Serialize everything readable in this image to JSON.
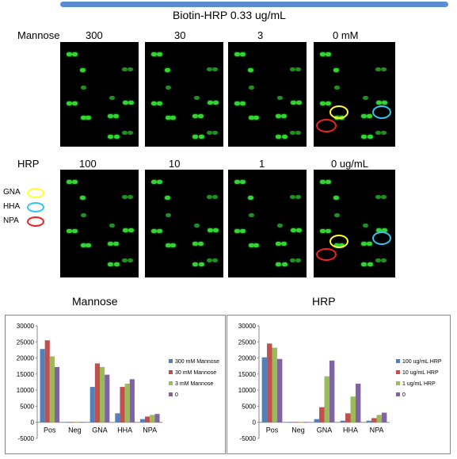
{
  "banner_title": "Biotin-HRP  0.33 ug/mL",
  "top_row": {
    "label": "Mannose",
    "concentrations": [
      "300",
      "30",
      "3",
      "0  mM"
    ]
  },
  "bottom_row": {
    "label": "HRP",
    "concentrations": [
      "100",
      "10",
      "1",
      "0  ug/mL"
    ]
  },
  "legend_rings": [
    {
      "label": "GNA",
      "color": "#ffff33"
    },
    {
      "label": "HHA",
      "color": "#33c4ee"
    },
    {
      "label": "NPA",
      "color": "#ee2222"
    }
  ],
  "chart_data": [
    {
      "type": "bar",
      "title": "Mannose",
      "categories": [
        "Pos",
        "Neg",
        "GNA",
        "HHA",
        "NPA"
      ],
      "ylim": [
        -5000,
        30000
      ],
      "yticks": [
        "30000",
        "25000",
        "20000",
        "15000",
        "10000",
        "5000",
        "0",
        "-5000"
      ],
      "legend_position": "right",
      "series": [
        {
          "name": "300 mM Mannose",
          "color": "#4f81bd",
          "values": [
            22800,
            100,
            11000,
            2800,
            1000
          ]
        },
        {
          "name": "30 mM Mannose",
          "color": "#c0504d",
          "values": [
            25500,
            100,
            18300,
            11000,
            1800
          ]
        },
        {
          "name": "3 mM Mannose",
          "color": "#9bbb59",
          "values": [
            20500,
            100,
            17200,
            12000,
            2300
          ]
        },
        {
          "name": "0",
          "color": "#8064a2",
          "values": [
            17200,
            100,
            14800,
            13400,
            2600
          ]
        }
      ]
    },
    {
      "type": "bar",
      "title": "HRP",
      "categories": [
        "Pos",
        "Neg",
        "GNA",
        "HHA",
        "NPA"
      ],
      "ylim": [
        -5000,
        30000
      ],
      "yticks": [
        "30000",
        "25000",
        "20000",
        "15000",
        "10000",
        "5000",
        "0",
        "-5000"
      ],
      "legend_position": "right",
      "series": [
        {
          "name": "100 ug/mL HRP",
          "color": "#4f81bd",
          "values": [
            20200,
            100,
            1000,
            500,
            500
          ]
        },
        {
          "name": "10 ug/mL HRP",
          "color": "#c0504d",
          "values": [
            24500,
            100,
            4700,
            2800,
            1300
          ]
        },
        {
          "name": "1 ug/mL HRP",
          "color": "#9bbb59",
          "values": [
            23200,
            100,
            14300,
            8000,
            2300
          ]
        },
        {
          "name": "0",
          "color": "#8064a2",
          "values": [
            19700,
            100,
            19200,
            12000,
            3000
          ]
        }
      ]
    }
  ]
}
